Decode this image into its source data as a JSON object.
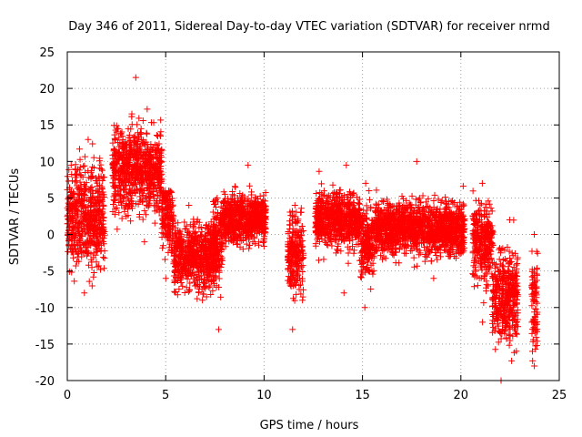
{
  "chart_data": {
    "type": "scatter",
    "title": "Day 346 of 2011, Sidereal Day-to-day VTEC variation (SDTVAR) for receiver nrmd",
    "xlabel": "GPS time / hours",
    "ylabel": "SDTVAR / TECUs",
    "xlim": [
      0,
      25
    ],
    "ylim": [
      -20,
      25
    ],
    "xticks": [
      0,
      5,
      10,
      15,
      20,
      25
    ],
    "yticks": [
      -20,
      -15,
      -10,
      -5,
      0,
      5,
      10,
      15,
      20,
      25
    ],
    "grid": true,
    "marker": "+",
    "series": [
      {
        "name": "SDTVAR",
        "color": "#ff0000",
        "segments": [
          {
            "x": [
              0.0,
              1.9
            ],
            "center": 2.5,
            "spread": 8.0,
            "min": -8,
            "max": 13
          },
          {
            "x": [
              2.3,
              4.8
            ],
            "center": 9.0,
            "spread": 6.0,
            "min": -1,
            "max": 21.5
          },
          {
            "x": [
              4.8,
              5.4
            ],
            "center": 2.0,
            "spread": 5.0,
            "min": -6,
            "max": 6
          },
          {
            "x": [
              5.4,
              7.6
            ],
            "center": -2.5,
            "spread": 4.0,
            "min": -9,
            "max": 4
          },
          {
            "x": [
              7.4,
              7.9
            ],
            "center": -1.0,
            "spread": 6.0,
            "min": -13,
            "max": 5
          },
          {
            "x": [
              7.9,
              10.1
            ],
            "center": 2.5,
            "spread": 2.5,
            "min": -2,
            "max": 9.5
          },
          {
            "x": [
              11.2,
              12.0
            ],
            "center": -2.0,
            "spread": 6.0,
            "min": -13,
            "max": 4
          },
          {
            "x": [
              12.6,
              14.9
            ],
            "center": 2.0,
            "spread": 3.0,
            "min": -8,
            "max": 9.5
          },
          {
            "x": [
              14.9,
              15.6
            ],
            "center": -1.0,
            "spread": 5.0,
            "min": -10,
            "max": 7
          },
          {
            "x": [
              15.6,
              20.2
            ],
            "center": 1.5,
            "spread": 3.0,
            "min": -6,
            "max": 10
          },
          {
            "x": [
              20.6,
              21.6
            ],
            "center": -1.0,
            "spread": 6.0,
            "min": -12,
            "max": 7
          },
          {
            "x": [
              21.6,
              22.9
            ],
            "center": -8.0,
            "spread": 7.0,
            "min": -20,
            "max": 2
          },
          {
            "x": [
              23.6,
              23.9
            ],
            "center": -9.0,
            "spread": 8.0,
            "min": -18,
            "max": 0
          }
        ]
      }
    ],
    "legend": "none"
  }
}
